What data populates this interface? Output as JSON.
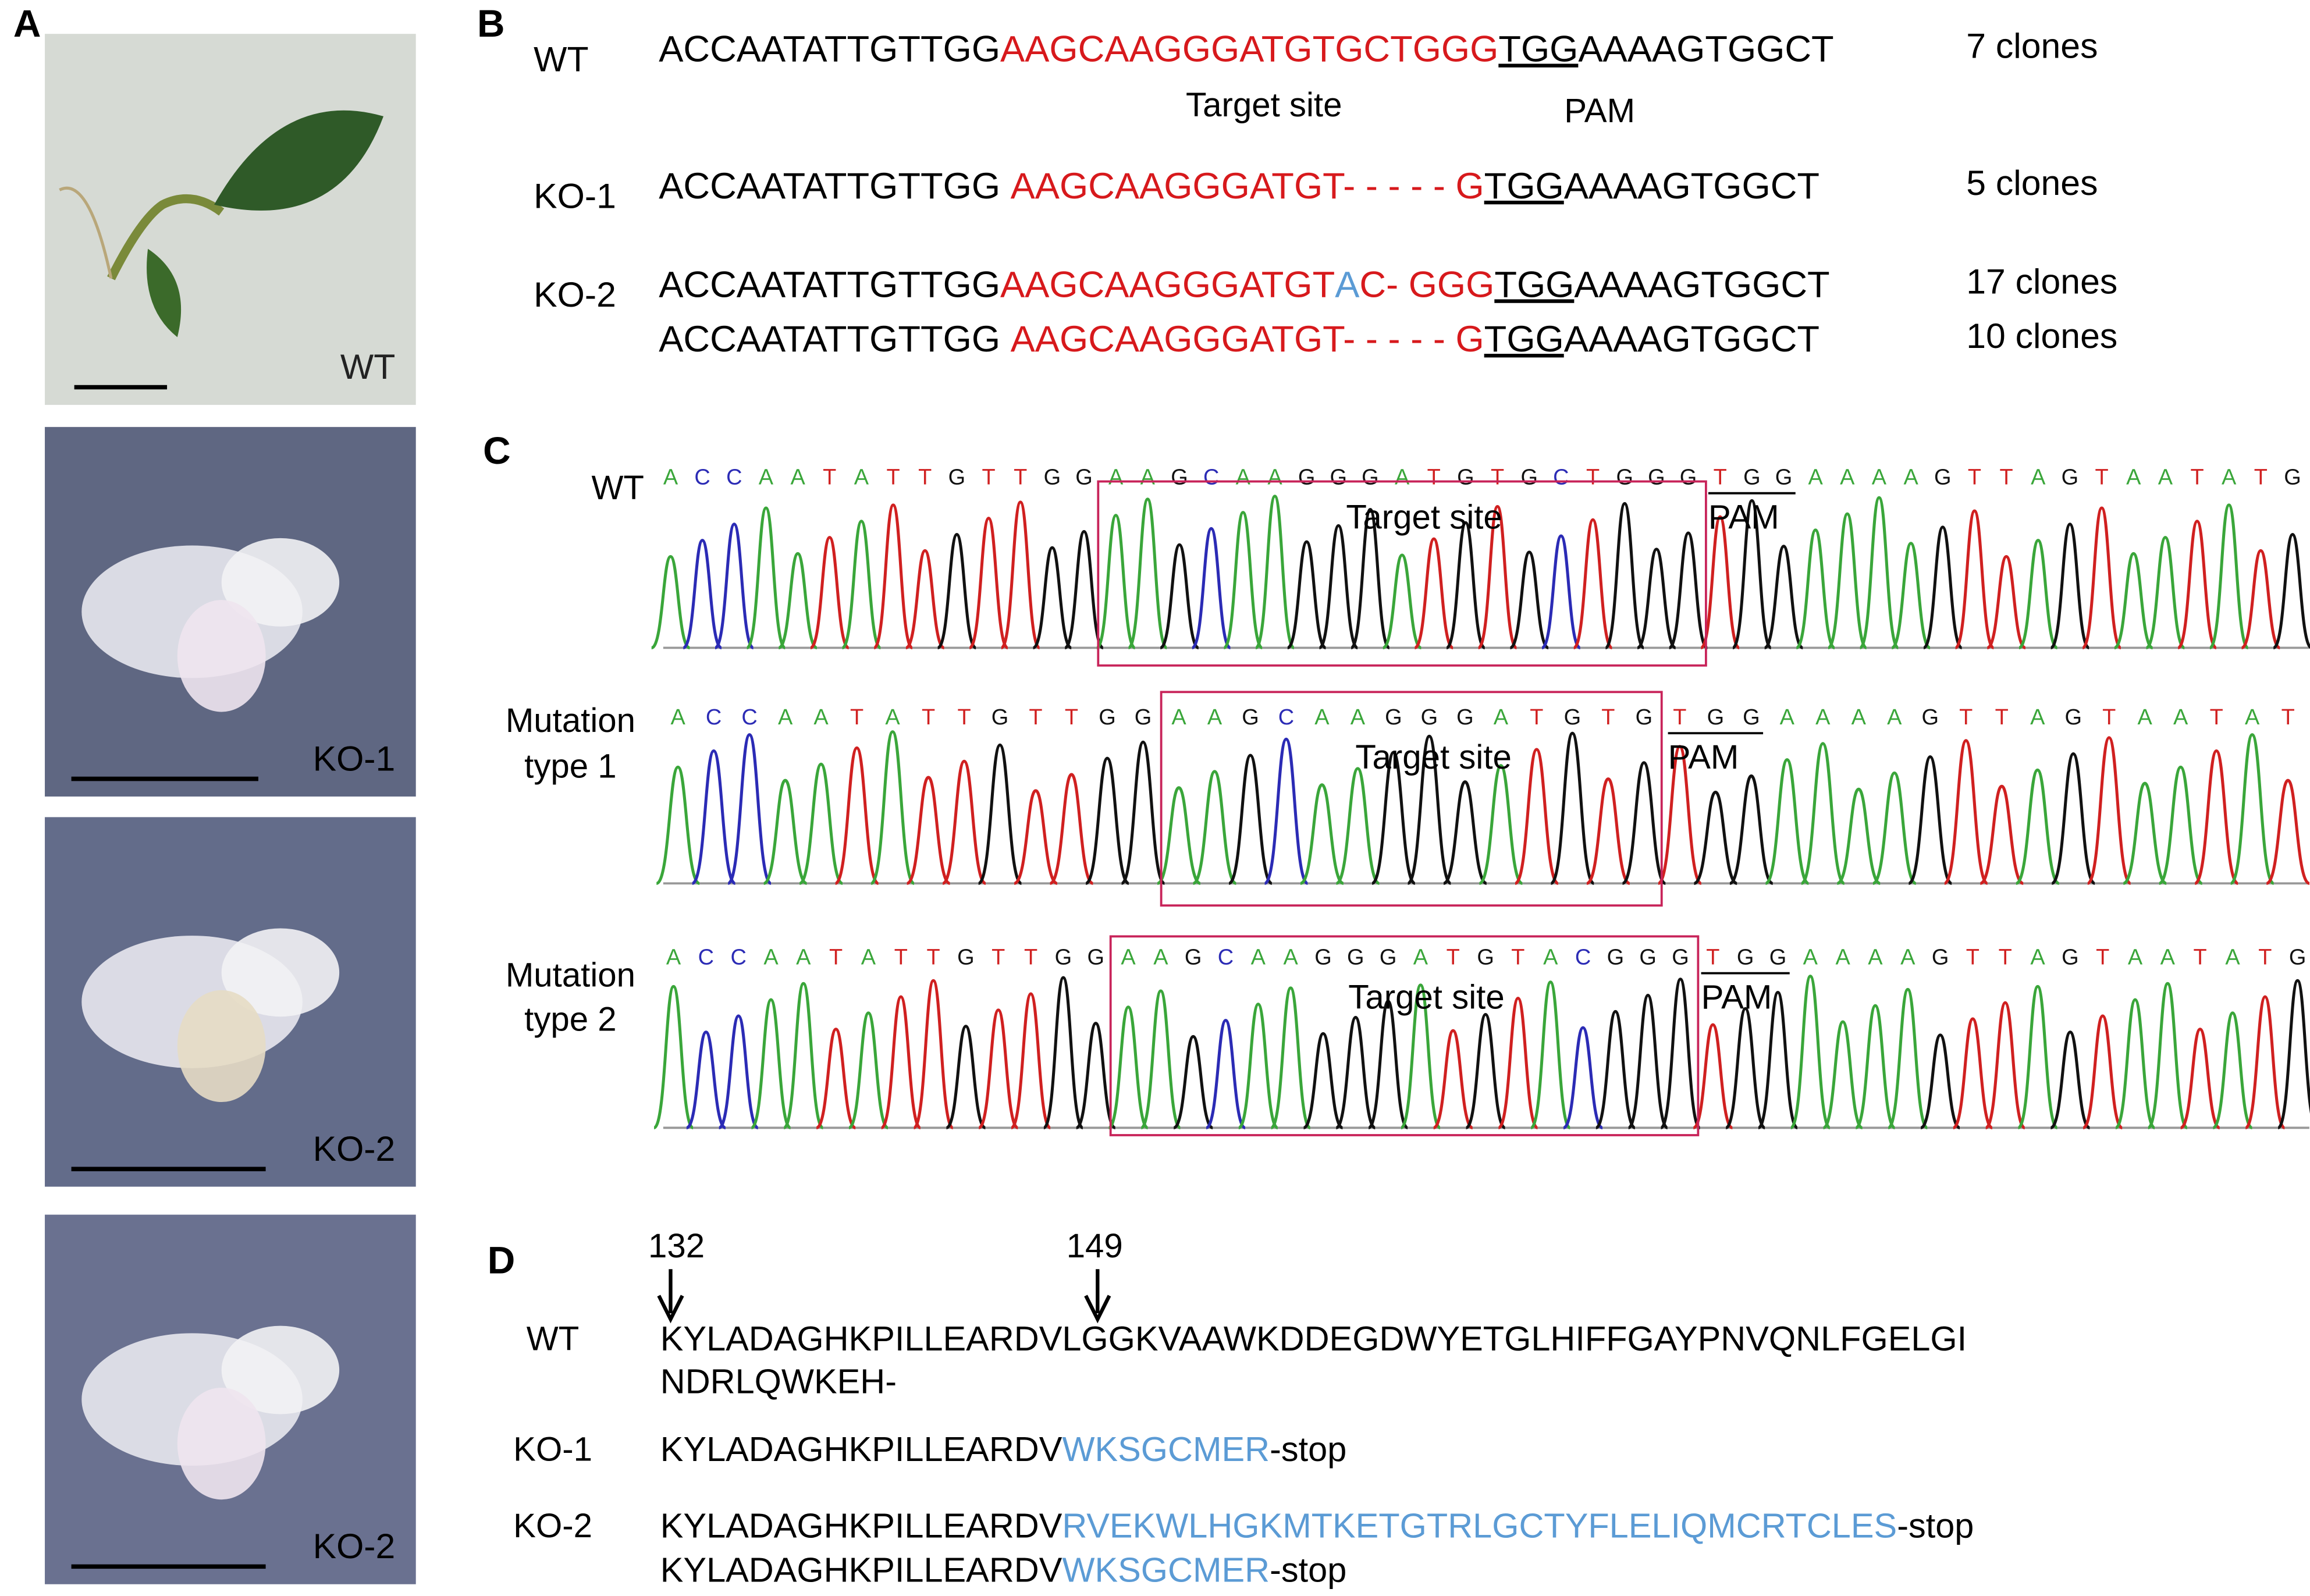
{
  "panel_labels": [
    "A",
    "B",
    "C",
    "D"
  ],
  "panel_a": {
    "photos": [
      {
        "label": "WT"
      },
      {
        "label": "KO-1"
      },
      {
        "label": "KO-2"
      },
      {
        "label": "KO-2"
      }
    ]
  },
  "panel_b": {
    "target_label": "Target site",
    "pam_label": "PAM",
    "rows": [
      {
        "name": "WT",
        "clones": "7 clones",
        "segments": [
          {
            "text": "ACCAATATTGTTGG",
            "color": "#000000"
          },
          {
            "text": "AAGCAAGGGATGTGCTGGG",
            "color": "#d7191c"
          },
          {
            "text": "TGG",
            "color": "#000000",
            "underline": true
          },
          {
            "text": "AAAAGTGGCT",
            "color": "#000000"
          }
        ]
      },
      {
        "name": "KO-1",
        "clones": "5 clones",
        "segments": [
          {
            "text": "ACCAATATTGTTGG ",
            "color": "#000000"
          },
          {
            "text": "AAGCAAGGGATGT- - - - - G",
            "color": "#d7191c"
          },
          {
            "text": "TGG",
            "color": "#000000",
            "underline": true
          },
          {
            "text": "AAAAGTGGCT",
            "color": "#000000"
          }
        ]
      },
      {
        "name": "KO-2",
        "clones": "17 clones",
        "segments": [
          {
            "text": "ACCAATATTGTTGG",
            "color": "#000000"
          },
          {
            "text": "AAGCAAGGGATGT",
            "color": "#d7191c"
          },
          {
            "text": "A",
            "color": "#5b9bd5"
          },
          {
            "text": "C- GGG",
            "color": "#d7191c"
          },
          {
            "text": "TGG",
            "color": "#000000",
            "underline": true
          },
          {
            "text": "AAAAGTGGCT",
            "color": "#000000"
          }
        ]
      },
      {
        "clones": "10 clones",
        "segments": [
          {
            "text": "ACCAATATTGTTGG ",
            "color": "#000000"
          },
          {
            "text": "AAGCAAGGGATGT- - - - - G",
            "color": "#d7191c"
          },
          {
            "text": "TGG",
            "color": "#000000",
            "underline": true
          },
          {
            "text": "AAAAGTGGCT",
            "color": "#000000"
          }
        ]
      }
    ]
  },
  "panel_c": {
    "target_label": "Target site",
    "pam_label": "PAM",
    "base_colors": {
      "A": "#3aa63a",
      "C": "#2b2bb5",
      "G": "#111111",
      "T": "#d02020"
    },
    "traces": [
      {
        "name_lines": [
          "WT"
        ],
        "bases": [
          "A",
          "C",
          "C",
          "A",
          "A",
          "T",
          "A",
          "T",
          "T",
          "G",
          "T",
          "T",
          "G",
          "G",
          "A",
          "A",
          "G",
          "C",
          "A",
          "A",
          "G",
          "G",
          "G",
          "A",
          "T",
          "G",
          "T",
          "G",
          "C",
          "T",
          "G",
          "G",
          "G",
          "T",
          "G",
          "G",
          "A",
          "A",
          "A",
          "A",
          "G",
          "T",
          "T",
          "A",
          "G",
          "T",
          "A",
          "A",
          "T",
          "A",
          "T",
          "G"
        ]
      },
      {
        "name_lines": [
          "Mutation",
          "type 1"
        ],
        "bases": [
          "A",
          "C",
          "C",
          "A",
          "A",
          "T",
          "A",
          "T",
          "T",
          "G",
          "T",
          "T",
          "G",
          "G",
          "A",
          "A",
          "G",
          "C",
          "A",
          "A",
          "G",
          "G",
          "G",
          "A",
          "T",
          "G",
          "T",
          "G",
          "T",
          "G",
          "G",
          "A",
          "A",
          "A",
          "A",
          "G",
          "T",
          "T",
          "A",
          "G",
          "T",
          "A",
          "A",
          "T",
          "A",
          "T"
        ]
      },
      {
        "name_lines": [
          "Mutation",
          "type 2"
        ],
        "bases": [
          "A",
          "C",
          "C",
          "A",
          "A",
          "T",
          "A",
          "T",
          "T",
          "G",
          "T",
          "T",
          "G",
          "G",
          "A",
          "A",
          "G",
          "C",
          "A",
          "A",
          "G",
          "G",
          "G",
          "A",
          "T",
          "G",
          "T",
          "A",
          "C",
          "G",
          "G",
          "G",
          "T",
          "G",
          "G",
          "A",
          "A",
          "A",
          "A",
          "G",
          "T",
          "T",
          "A",
          "G",
          "T",
          "A",
          "A",
          "T",
          "A",
          "T",
          "G"
        ]
      }
    ]
  },
  "panel_d": {
    "markers": [
      132,
      149
    ],
    "rows": [
      {
        "name": "WT",
        "lines": [
          [
            {
              "text": "KYLADAGHKPILLEARDVLGGKVAAWKDDEGDWYETGLHIFFGAYPNVQNLFGELGI",
              "color": "#000000"
            }
          ],
          [
            {
              "text": "NDRLQWKEH-",
              "color": "#000000"
            }
          ]
        ]
      },
      {
        "name": "KO-1",
        "lines": [
          [
            {
              "text": "KYLADAGHKPILLEARDV",
              "color": "#000000"
            },
            {
              "text": "WKSGCMER",
              "color": "#5b9bd5"
            },
            {
              "text": "-stop",
              "color": "#000000"
            }
          ]
        ]
      },
      {
        "name": "KO-2",
        "lines": [
          [
            {
              "text": "KYLADAGHKPILLEARDV",
              "color": "#000000"
            },
            {
              "text": "RVEKWLHGKMTKETGTRLGCTYFLELIQMCRTCLES",
              "color": "#5b9bd5"
            },
            {
              "text": "-stop",
              "color": "#000000"
            }
          ],
          [
            {
              "text": "KYLADAGHKPILLEARDV",
              "color": "#000000"
            },
            {
              "text": "WKSGCMER",
              "color": "#5b9bd5"
            },
            {
              "text": "-stop",
              "color": "#000000"
            }
          ]
        ]
      }
    ]
  }
}
